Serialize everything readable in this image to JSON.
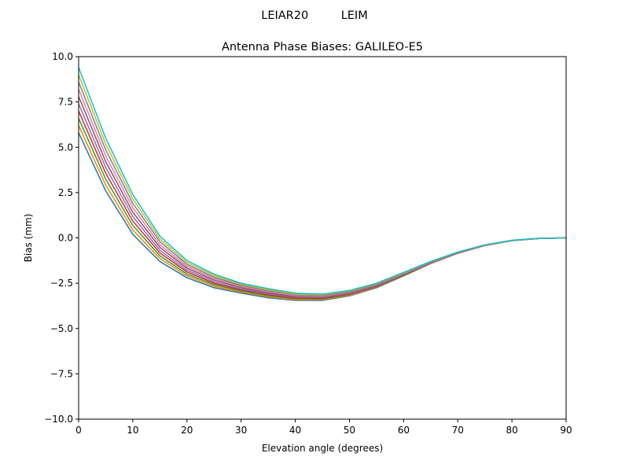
{
  "chart_data": {
    "type": "line",
    "suptitle": "LEIAR20         LEIM",
    "title": "Antenna Phase Biases: GALILEO-E5",
    "xlabel": "Elevation angle (degrees)",
    "ylabel": "Bias (mm)",
    "xlim": [
      0,
      90
    ],
    "ylim": [
      -10,
      10
    ],
    "xticks": [
      0,
      10,
      20,
      30,
      40,
      50,
      60,
      70,
      80,
      90
    ],
    "yticks": [
      -10.0,
      -7.5,
      -5.0,
      -2.5,
      0.0,
      2.5,
      5.0,
      7.5,
      10.0
    ],
    "grid": false,
    "colors": [
      "#1f77b4",
      "#ff7f0e",
      "#2ca02c",
      "#d62728",
      "#9467bd",
      "#8c564b",
      "#e377c2",
      "#7f7f7f",
      "#bcbd22",
      "#17becf"
    ],
    "x": [
      0,
      5,
      10,
      15,
      20,
      25,
      30,
      35,
      40,
      45,
      50,
      55,
      60,
      65,
      70,
      75,
      80,
      85,
      90
    ],
    "series": [
      {
        "values": [
          5.8,
          2.6,
          0.2,
          -1.3,
          -2.2,
          -2.75,
          -3.05,
          -3.3,
          -3.45,
          -3.45,
          -3.2,
          -2.75,
          -2.1,
          -1.42,
          -0.85,
          -0.42,
          -0.15,
          -0.03,
          0
        ]
      },
      {
        "values": [
          6.2,
          2.92,
          0.44,
          -1.14,
          -2.09,
          -2.67,
          -2.99,
          -3.24,
          -3.41,
          -3.41,
          -3.17,
          -2.72,
          -2.08,
          -1.41,
          -0.84,
          -0.42,
          -0.15,
          -0.03,
          0
        ]
      },
      {
        "values": [
          6.6,
          3.24,
          0.69,
          -0.99,
          -1.99,
          -2.58,
          -2.93,
          -3.19,
          -3.36,
          -3.37,
          -3.13,
          -2.69,
          -2.06,
          -1.39,
          -0.83,
          -0.41,
          -0.15,
          -0.03,
          0
        ]
      },
      {
        "values": [
          7.0,
          3.57,
          0.93,
          -0.83,
          -1.88,
          -2.5,
          -2.87,
          -3.13,
          -3.32,
          -3.33,
          -3.1,
          -2.67,
          -2.03,
          -1.38,
          -0.83,
          -0.41,
          -0.14,
          -0.03,
          0
        ]
      },
      {
        "values": [
          7.4,
          3.89,
          1.18,
          -0.68,
          -1.78,
          -2.42,
          -2.81,
          -3.08,
          -3.27,
          -3.29,
          -3.07,
          -2.64,
          -2.01,
          -1.37,
          -0.82,
          -0.4,
          -0.14,
          -0.03,
          0
        ]
      },
      {
        "values": [
          7.8,
          4.21,
          1.42,
          -0.52,
          -1.67,
          -2.33,
          -2.74,
          -3.02,
          -3.23,
          -3.26,
          -3.03,
          -2.61,
          -1.99,
          -1.35,
          -0.81,
          -0.4,
          -0.14,
          -0.02,
          0
        ]
      },
      {
        "values": [
          8.2,
          4.53,
          1.67,
          -0.37,
          -1.57,
          -2.25,
          -2.68,
          -2.97,
          -3.19,
          -3.22,
          -3.0,
          -2.58,
          -1.97,
          -1.34,
          -0.8,
          -0.4,
          -0.14,
          -0.02,
          0
        ]
      },
      {
        "values": [
          8.6,
          4.86,
          1.91,
          -0.21,
          -1.46,
          -2.17,
          -2.62,
          -2.91,
          -3.14,
          -3.18,
          -2.97,
          -2.56,
          -1.94,
          -1.33,
          -0.8,
          -0.39,
          -0.14,
          -0.02,
          0
        ]
      },
      {
        "values": [
          9.0,
          5.18,
          2.16,
          -0.06,
          -1.36,
          -2.08,
          -2.56,
          -2.86,
          -3.1,
          -3.14,
          -2.93,
          -2.53,
          -1.92,
          -1.31,
          -0.79,
          -0.39,
          -0.13,
          -0.02,
          0
        ]
      },
      {
        "values": [
          9.4,
          5.5,
          2.4,
          0.1,
          -1.25,
          -2.0,
          -2.5,
          -2.8,
          -3.05,
          -3.1,
          -2.9,
          -2.5,
          -1.9,
          -1.3,
          -0.78,
          -0.38,
          -0.13,
          -0.02,
          0
        ]
      }
    ]
  }
}
